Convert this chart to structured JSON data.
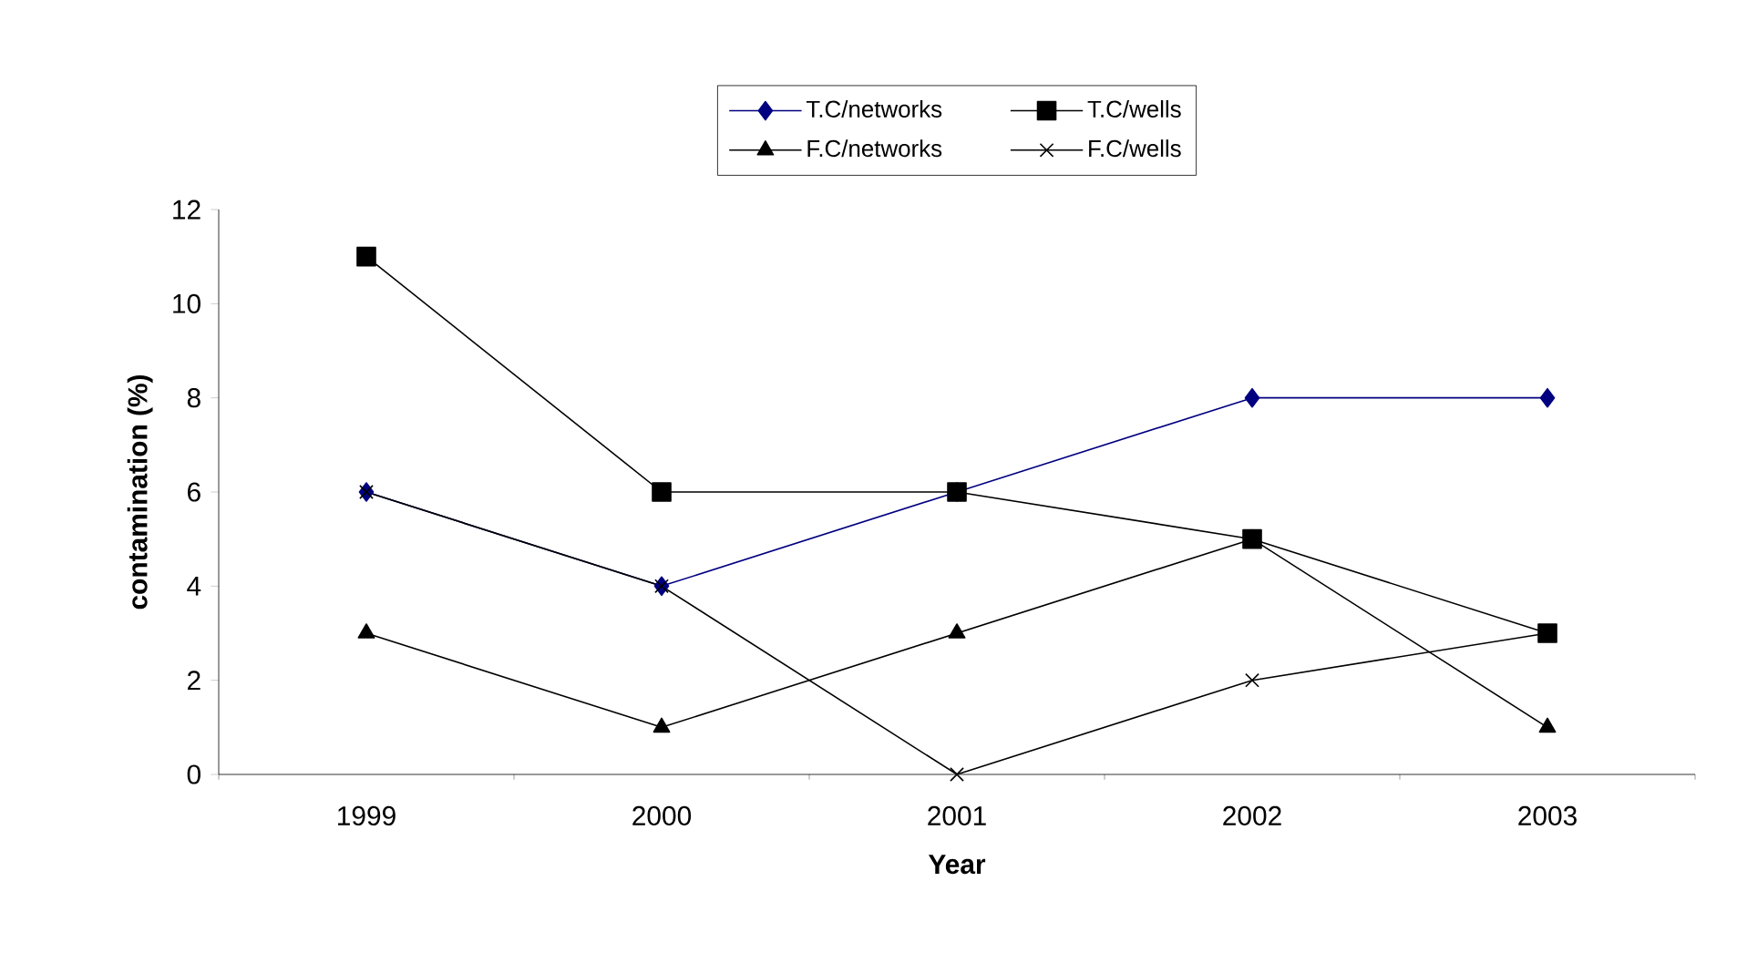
{
  "chart_data": {
    "type": "line",
    "xlabel": "Year",
    "ylabel": "contamination (%)",
    "categories": [
      "1999",
      "2000",
      "2001",
      "2002",
      "2003"
    ],
    "series": [
      {
        "name": "T.C/networks",
        "color": "#000080",
        "marker": "diamond",
        "values": [
          6,
          4,
          6,
          8,
          8
        ]
      },
      {
        "name": "T.C/wells",
        "color": "#000000",
        "marker": "square",
        "values": [
          11,
          6,
          6,
          5,
          3
        ]
      },
      {
        "name": "F.C/networks",
        "color": "#000000",
        "marker": "triangle",
        "values": [
          3,
          1,
          3,
          5,
          1
        ]
      },
      {
        "name": "F.C/wells",
        "color": "#000000",
        "marker": "cross",
        "values": [
          6,
          4,
          0,
          2,
          3
        ]
      }
    ],
    "ylim": [
      0,
      12
    ],
    "yticks": [
      0,
      2,
      4,
      6,
      8,
      10,
      12
    ],
    "grid": false,
    "legend": "top",
    "line_style": "solid"
  }
}
